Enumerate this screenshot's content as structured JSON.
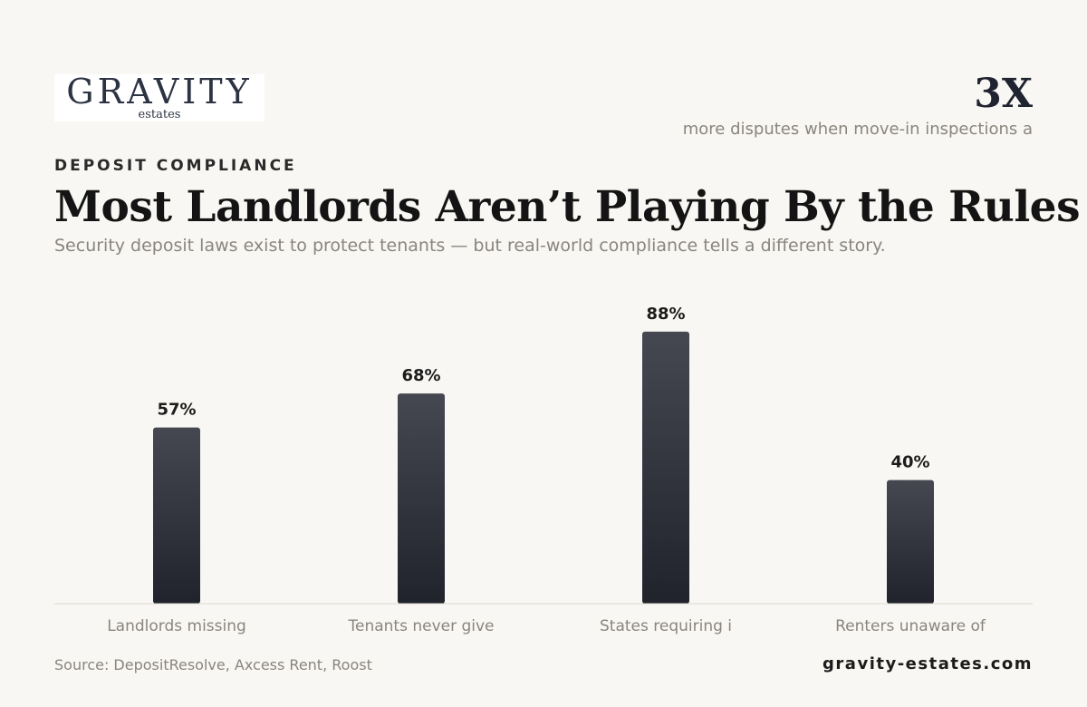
{
  "brand": {
    "logo_main": "GRAVITY",
    "logo_sub": "estates",
    "website": "gravity-estates.com"
  },
  "stat": {
    "value": "3X",
    "text": "more disputes when move-in inspections a"
  },
  "header": {
    "eyebrow": "DEPOSIT COMPLIANCE",
    "title": "Most Landlords Aren’t Playing By the Rules",
    "subtitle": "Security deposit laws exist to protect tenants — but real-world compliance tells a different story."
  },
  "footer": {
    "source": "Source: DepositResolve, Axcess Rent, Roost"
  },
  "colors": {
    "background": "#f8f7f3",
    "bar_top": "#454751",
    "bar_bottom": "#20232c",
    "axis": "#dcd9d2"
  },
  "chart_data": {
    "type": "bar",
    "categories": [
      "Landlords missing",
      "Tenants never give",
      "States requiring i",
      "Renters unaware of"
    ],
    "values": [
      57,
      68,
      88,
      40
    ],
    "value_labels": [
      "57%",
      "68%",
      "88%",
      "40%"
    ],
    "title": "",
    "xlabel": "",
    "ylabel": "",
    "ylim": [
      0,
      100
    ],
    "grid": false
  }
}
